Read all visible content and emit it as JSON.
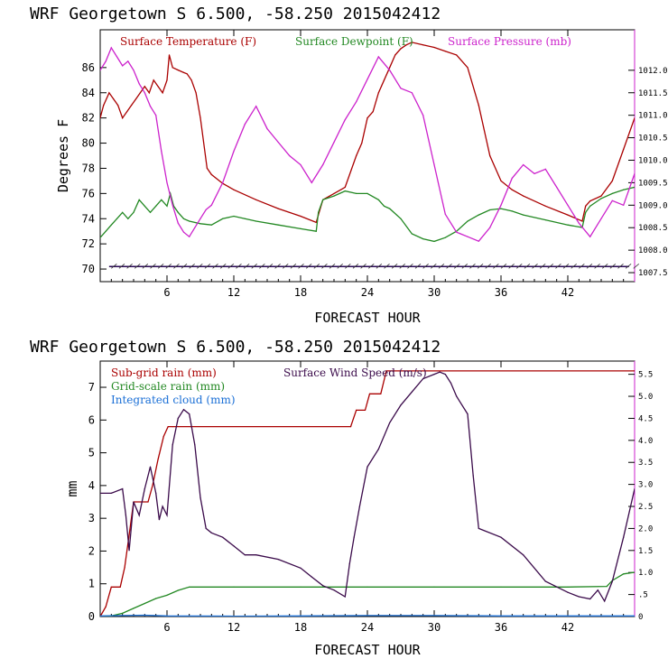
{
  "chart_data": [
    {
      "type": "line",
      "title": "WRF   Georgetown S   6.500, -58.250  2015042412",
      "xlabel": "FORECAST HOUR",
      "ylabel": "Degrees F",
      "xlim": [
        0,
        48
      ],
      "ylim": [
        69,
        89
      ],
      "y2lim": [
        1007.3,
        1012.9
      ],
      "xticks": [
        "6",
        "12",
        "18",
        "24",
        "30",
        "36",
        "42"
      ],
      "yticks": [
        "70",
        "72",
        "74",
        "76",
        "78",
        "80",
        "82",
        "84",
        "86"
      ],
      "y2ticks": [
        "1007.5",
        "1008.0",
        "1008.5",
        "1009.0",
        "1009.5",
        "1010.0",
        "1010.5",
        "1011.0",
        "1011.5",
        "1012.0"
      ],
      "legend_position": "top",
      "series": [
        {
          "name": "Surface Temperature (F)",
          "color": "#aa0000",
          "axis": "left",
          "x": [
            0,
            0.3,
            0.8,
            1.2,
            1.6,
            2.0,
            2.4,
            2.8,
            3.2,
            3.6,
            4.0,
            4.4,
            4.8,
            5.2,
            5.6,
            6.0,
            6.2,
            6.5,
            7.0,
            7.5,
            7.8,
            8.2,
            8.6,
            9.0,
            9.6,
            10.0,
            11,
            12,
            14,
            16,
            18,
            19.4,
            19.6,
            20,
            21,
            22,
            23,
            23.5,
            24,
            24.5,
            25,
            25.5,
            26,
            26.5,
            27,
            27.5,
            28,
            29,
            30,
            31,
            32,
            33,
            34,
            35,
            36,
            37,
            38,
            40,
            42,
            43.3,
            43.6,
            44,
            45,
            46,
            47,
            48
          ],
          "values": [
            82,
            83,
            84,
            83.5,
            83,
            82,
            82.5,
            83,
            83.5,
            84,
            84.5,
            84,
            85,
            84.5,
            84,
            85,
            87,
            86,
            85.8,
            85.6,
            85.5,
            85,
            84,
            82,
            78,
            77.5,
            76.8,
            76.3,
            75.5,
            74.8,
            74.2,
            73.7,
            74.3,
            75.5,
            76,
            76.5,
            79,
            80,
            82,
            82.5,
            84,
            85,
            86,
            87,
            87.5,
            87.8,
            88,
            87.8,
            87.6,
            87.3,
            87,
            86,
            83,
            79,
            77,
            76.3,
            75.8,
            75,
            74.3,
            73.8,
            75,
            75.4,
            75.8,
            77,
            79.5,
            82
          ]
        },
        {
          "name": "Surface Dewpoint (F)",
          "color": "#228822",
          "axis": "left",
          "x": [
            0,
            0.5,
            1,
            1.5,
            2,
            2.5,
            3,
            3.5,
            4,
            4.5,
            5,
            5.5,
            6,
            6.3,
            6.6,
            7,
            7.5,
            8,
            9,
            10,
            11,
            12,
            13,
            14,
            16,
            18,
            19.4,
            19.6,
            20,
            21,
            22,
            23,
            24,
            25,
            25.5,
            26,
            27,
            28,
            29,
            30,
            31,
            32,
            33,
            34,
            35,
            36,
            37,
            38,
            40,
            42,
            43.3,
            43.6,
            44,
            45,
            46,
            47,
            48
          ],
          "values": [
            72.5,
            73,
            73.5,
            74,
            74.5,
            74,
            74.5,
            75.5,
            75,
            74.5,
            75,
            75.5,
            75,
            76,
            75,
            74.5,
            74,
            73.8,
            73.6,
            73.5,
            74,
            74.2,
            74,
            73.8,
            73.5,
            73.2,
            73,
            74.5,
            75.5,
            75.8,
            76.2,
            76,
            76,
            75.5,
            75,
            74.8,
            74,
            72.8,
            72.4,
            72.2,
            72.5,
            73,
            73.8,
            74.3,
            74.7,
            74.8,
            74.6,
            74.3,
            73.9,
            73.5,
            73.3,
            74.5,
            75,
            75.6,
            76,
            76.3,
            76.5
          ]
        },
        {
          "name": "Surface Pressure (mb)",
          "color": "#cc22cc",
          "axis": "right",
          "x": [
            0,
            0.5,
            1,
            1.5,
            2,
            2.5,
            3,
            3.5,
            4,
            4.5,
            5,
            5.5,
            6,
            6.5,
            7,
            7.5,
            8,
            8.5,
            9,
            9.5,
            10,
            11,
            12,
            13,
            14,
            15,
            16,
            17,
            18,
            19,
            20,
            21,
            22,
            23,
            24,
            25,
            26,
            27,
            28,
            29,
            30,
            31,
            32,
            33,
            34,
            35,
            36,
            37,
            38,
            39,
            40,
            41,
            42,
            43,
            44,
            45,
            46,
            47,
            48
          ],
          "values": [
            1012,
            1012.2,
            1012.5,
            1012.3,
            1012.1,
            1012.2,
            1012,
            1011.7,
            1011.5,
            1011.2,
            1011,
            1010.2,
            1009.5,
            1009,
            1008.6,
            1008.4,
            1008.3,
            1008.5,
            1008.7,
            1008.9,
            1009,
            1009.5,
            1010.2,
            1010.8,
            1011.2,
            1010.7,
            1010.4,
            1010.1,
            1009.9,
            1009.5,
            1009.9,
            1010.4,
            1010.9,
            1011.3,
            1011.8,
            1012.3,
            1012,
            1011.6,
            1011.5,
            1011,
            1009.9,
            1008.8,
            1008.4,
            1008.3,
            1008.2,
            1008.5,
            1009,
            1009.6,
            1009.9,
            1009.7,
            1009.8,
            1009.4,
            1009,
            1008.6,
            1008.3,
            1008.7,
            1009.1,
            1009,
            1009.7
          ]
        }
      ]
    },
    {
      "type": "line",
      "title": "WRF   Georgetown S   6.500, -58.250  2015042412",
      "xlabel": "FORECAST HOUR",
      "ylabel": "mm",
      "xlim": [
        0,
        48
      ],
      "ylim": [
        0,
        7.8
      ],
      "y2lim": [
        0,
        5.8
      ],
      "xticks": [
        "6",
        "12",
        "18",
        "24",
        "30",
        "36",
        "42"
      ],
      "yticks": [
        "0",
        "1",
        "2",
        "3",
        "4",
        "5",
        "6",
        "7"
      ],
      "y2ticks": [
        "0",
        ".5",
        "1.0",
        "1.5",
        "2.0",
        "2.5",
        "3.0",
        "3.5",
        "4.0",
        "4.5",
        "5.0",
        "5.5"
      ],
      "legend_position": "top-left",
      "series": [
        {
          "name": "Sub-grid rain (mm)",
          "color": "#aa0000",
          "axis": "left",
          "x": [
            0,
            0.5,
            1,
            1.8,
            2.2,
            2.6,
            3,
            4.3,
            4.7,
            5.2,
            5.7,
            6.1,
            6.5,
            22.5,
            23,
            23.8,
            24.2,
            25.2,
            25.7,
            48
          ],
          "values": [
            0,
            0.3,
            0.9,
            0.9,
            1.5,
            2.5,
            3.5,
            3.5,
            4,
            4.8,
            5.5,
            5.8,
            5.8,
            5.8,
            6.3,
            6.3,
            6.8,
            6.8,
            7.5,
            7.5
          ]
        },
        {
          "name": "Grid-scale rain (mm)",
          "color": "#228822",
          "axis": "left",
          "x": [
            0,
            1,
            2,
            3,
            4,
            5,
            6,
            7,
            8,
            12,
            18,
            24,
            30,
            36,
            42,
            45.5,
            46,
            47,
            48
          ],
          "values": [
            0,
            0.02,
            0.1,
            0.25,
            0.4,
            0.55,
            0.65,
            0.8,
            0.9,
            0.9,
            0.9,
            0.9,
            0.9,
            0.9,
            0.9,
            0.92,
            1.1,
            1.3,
            1.35
          ]
        },
        {
          "name": "Integrated cloud (mm)",
          "color": "#1a6fd6",
          "axis": "left",
          "x": [
            0,
            2,
            4,
            6,
            12,
            18,
            24,
            30,
            36,
            42,
            48
          ],
          "values": [
            0.02,
            0.03,
            0.04,
            0.02,
            0.01,
            0.02,
            0.03,
            0.03,
            0.02,
            0.02,
            0.02
          ]
        },
        {
          "name": "Surface Wind Speed (m/s)",
          "color": "#3a0a4a",
          "axis": "right",
          "x": [
            0,
            1,
            2,
            2.3,
            2.6,
            3,
            3.5,
            4,
            4.5,
            5,
            5.3,
            5.6,
            6,
            6.5,
            7,
            7.5,
            8,
            8.5,
            9,
            9.5,
            10,
            11,
            12,
            13,
            14,
            16,
            18,
            19,
            20,
            21,
            22,
            22.4,
            22.8,
            23.3,
            24,
            25,
            26,
            27,
            28,
            29,
            30,
            30.5,
            31,
            31.5,
            32,
            33,
            33.5,
            34,
            36,
            38,
            40,
            42,
            43,
            44,
            44.7,
            45.3,
            46,
            47,
            48
          ],
          "values": [
            2.8,
            2.8,
            2.9,
            2.3,
            1.5,
            2.6,
            2.3,
            2.9,
            3.4,
            2.8,
            2.2,
            2.5,
            2.3,
            3.9,
            4.5,
            4.7,
            4.6,
            3.9,
            2.7,
            2,
            1.9,
            1.8,
            1.6,
            1.4,
            1.4,
            1.3,
            1.1,
            0.9,
            0.7,
            0.6,
            0.45,
            1.2,
            1.8,
            2.5,
            3.4,
            3.8,
            4.4,
            4.8,
            5.1,
            5.4,
            5.5,
            5.55,
            5.5,
            5.3,
            5,
            4.6,
            3.2,
            2.0,
            1.8,
            1.4,
            0.8,
            0.55,
            0.45,
            0.4,
            0.6,
            0.35,
            0.8,
            1.8,
            2.9
          ]
        }
      ]
    }
  ]
}
